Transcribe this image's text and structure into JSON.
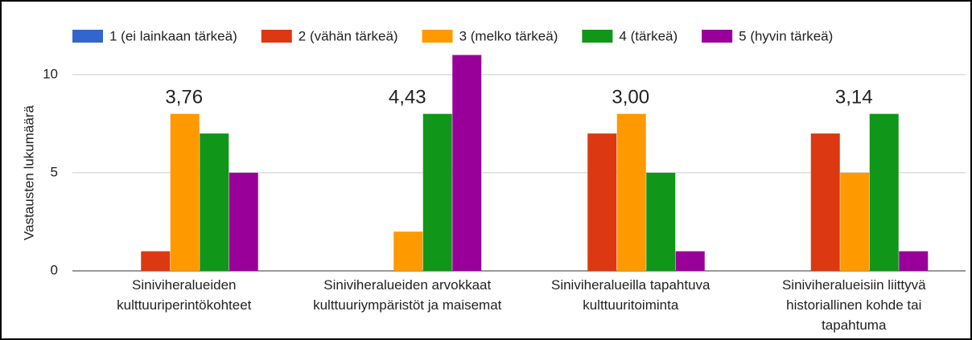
{
  "chart_data": {
    "type": "bar",
    "y_label": "Vastausten lukumäärä",
    "categories": [
      "Siniviheralueiden kulttuuriperintökohteet",
      "Siniviheralueiden arvokkaat kulttuuriympäristöt ja maisemat",
      "Siniviheralueilla tapahtuva kulttuuritoiminta",
      "Siniviheralueisiin liittyvä historiallinen kohde tai tapahtuma"
    ],
    "annotations": [
      "3,76",
      "4,43",
      "3,00",
      "3,14"
    ],
    "series": [
      {
        "name": "1 (ei lainkaan tärkeä)",
        "color": "#3366cc",
        "values": [
          0,
          0,
          0,
          0
        ]
      },
      {
        "name": "2 (vähän tärkeä)",
        "color": "#dc3912",
        "values": [
          1,
          0,
          7,
          7
        ]
      },
      {
        "name": "3 (melko tärkeä)",
        "color": "#ff9900",
        "values": [
          8,
          2,
          8,
          5
        ]
      },
      {
        "name": "4 (tärkeä)",
        "color": "#109618",
        "values": [
          7,
          8,
          5,
          8
        ]
      },
      {
        "name": "5 (hyvin tärkeä)",
        "color": "#990099",
        "values": [
          5,
          11,
          1,
          1
        ]
      }
    ],
    "ylim": [
      0,
      12
    ],
    "yticks": [
      0,
      5,
      10
    ],
    "grid": true,
    "legend": "top"
  }
}
